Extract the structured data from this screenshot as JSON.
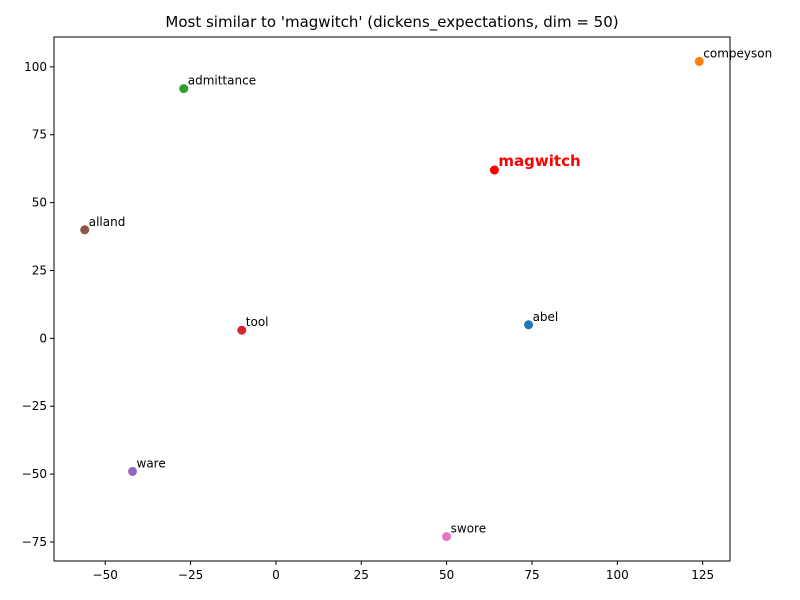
{
  "chart_data": {
    "type": "scatter",
    "title": "Most similar to 'magwitch' (dickens_expectations, dim = 50)",
    "xlabel": "",
    "ylabel": "",
    "xlim": [
      -65,
      133
    ],
    "ylim": [
      -82,
      111
    ],
    "grid": false,
    "x_ticks": [
      -50,
      -25,
      0,
      25,
      50,
      75,
      100,
      125
    ],
    "y_ticks": [
      -75,
      -50,
      -25,
      0,
      25,
      50,
      75,
      100
    ],
    "points": [
      {
        "label": "abel",
        "x": 74,
        "y": 5,
        "color": "#1f77b4",
        "highlight": false
      },
      {
        "label": "compeyson",
        "x": 124,
        "y": 102,
        "color": "#ff7f0e",
        "highlight": false
      },
      {
        "label": "admittance",
        "x": -27,
        "y": 92,
        "color": "#2ca02c",
        "highlight": false
      },
      {
        "label": "tool",
        "x": -10,
        "y": 3,
        "color": "#d62728",
        "highlight": false
      },
      {
        "label": "ware",
        "x": -42,
        "y": -49,
        "color": "#9467bd",
        "highlight": false
      },
      {
        "label": "alland",
        "x": -56,
        "y": 40,
        "color": "#8c564b",
        "highlight": false
      },
      {
        "label": "swore",
        "x": 50,
        "y": -73,
        "color": "#e377c2",
        "highlight": false
      },
      {
        "label": "magwitch",
        "x": 64,
        "y": 62,
        "color": "#ff0000",
        "highlight": true
      }
    ]
  }
}
